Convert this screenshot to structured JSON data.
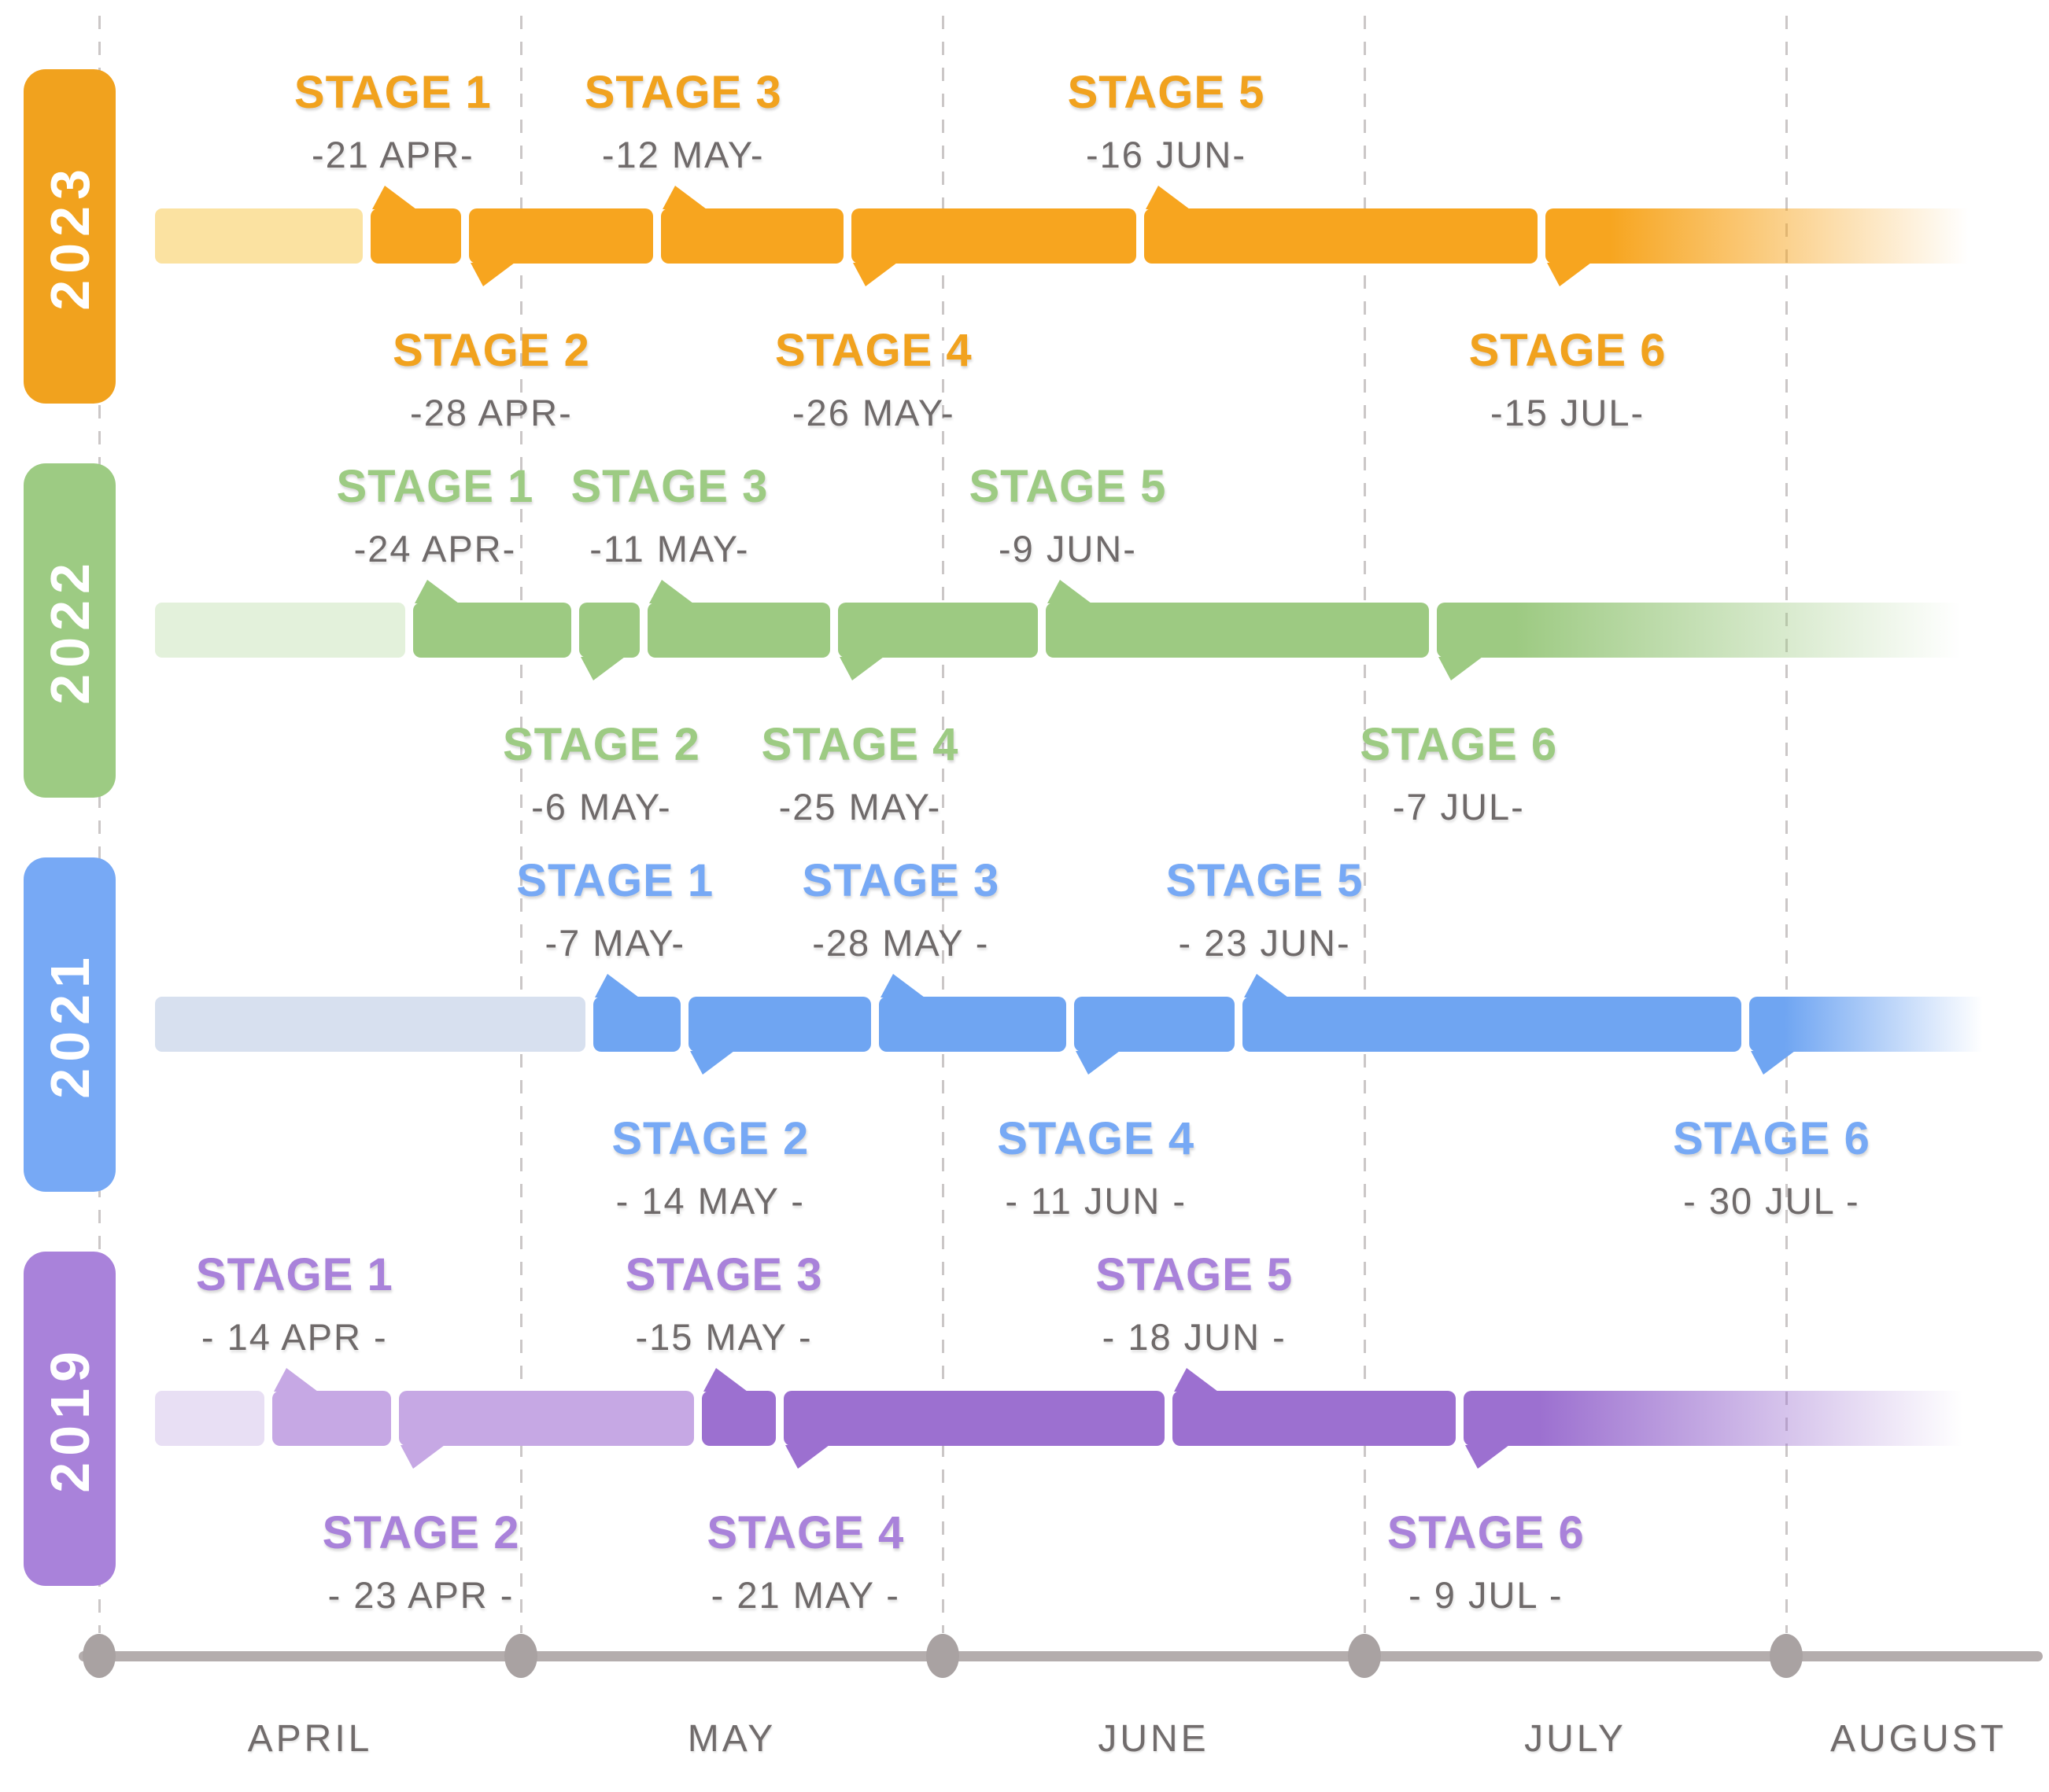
{
  "chart_data": {
    "type": "timeline",
    "title": "",
    "x_axis": {
      "unit": "months",
      "range": [
        "APRIL",
        "AUGUST"
      ],
      "gridlines": "dashed-vertical-at-month-starts"
    },
    "axis": {
      "months": [
        "APRIL",
        "MAY",
        "JUNE",
        "JULY",
        "AUGUST"
      ]
    },
    "palette": {
      "date_text": "#6F6A6A",
      "month_text": "#716C6C",
      "axis_line": "#B4ADAD",
      "axis_dot": "#A9A2A2",
      "gridline": "#CBC7C7",
      "year_text": "#FFFFFF"
    },
    "rows": [
      {
        "year": "2023",
        "colors": {
          "bar": "#F7A51F",
          "light": "#FBE2A1",
          "accent": "#F1A21E"
        },
        "stages": [
          {
            "label": "STAGE 1",
            "date": "-21 APR-",
            "month": 4,
            "day": 21
          },
          {
            "label": "STAGE 2",
            "date": "-28 APR-",
            "month": 4,
            "day": 28
          },
          {
            "label": "STAGE 3",
            "date": "-12 MAY-",
            "month": 5,
            "day": 12
          },
          {
            "label": "STAGE 4",
            "date": "-26 MAY-",
            "month": 5,
            "day": 26
          },
          {
            "label": "STAGE 5",
            "date": "-16 JUN-",
            "month": 6,
            "day": 16
          },
          {
            "label": "STAGE 6",
            "date": "-15 JUL-",
            "month": 7,
            "day": 15
          }
        ]
      },
      {
        "year": "2022",
        "colors": {
          "bar": "#9DCA82",
          "light": "#E3F1DB",
          "accent": "#9DCB83"
        },
        "stages": [
          {
            "label": "STAGE 1",
            "date": "-24 APR-",
            "month": 4,
            "day": 24
          },
          {
            "label": "STAGE 2",
            "date": "-6 MAY-",
            "month": 5,
            "day": 6
          },
          {
            "label": "STAGE 3",
            "date": "-11 MAY-",
            "month": 5,
            "day": 11
          },
          {
            "label": "STAGE 4",
            "date": "-25 MAY-",
            "month": 5,
            "day": 25
          },
          {
            "label": "STAGE 5",
            "date": "-9 JUN-",
            "month": 6,
            "day": 9
          },
          {
            "label": "STAGE 6",
            "date": "-7 JUL-",
            "month": 7,
            "day": 7
          }
        ]
      },
      {
        "year": "2021",
        "colors": {
          "bar": "#6FA5F2",
          "light": "#D7E0EF",
          "accent": "#77A9F5"
        },
        "stages": [
          {
            "label": "STAGE 1",
            "date": "-7 MAY-",
            "month": 5,
            "day": 7
          },
          {
            "label": "STAGE 2",
            "date": "- 14 MAY -",
            "month": 5,
            "day": 14
          },
          {
            "label": "STAGE 3",
            "date": "-28 MAY -",
            "month": 5,
            "day": 28
          },
          {
            "label": "STAGE 4",
            "date": "- 11 JUN -",
            "month": 6,
            "day": 11
          },
          {
            "label": "STAGE 5",
            "date": "- 23 JUN-",
            "month": 6,
            "day": 23
          },
          {
            "label": "STAGE 6",
            "date": "- 30 JUL -",
            "month": 7,
            "day": 30
          }
        ]
      },
      {
        "year": "2019",
        "colors": {
          "bar": "#9C70D0",
          "mid": "#C6A8E4",
          "light": "#E8DFF4",
          "accent": "#A982DA"
        },
        "stages": [
          {
            "label": "STAGE 1",
            "date": "- 14 APR -",
            "month": 4,
            "day": 14,
            "shade": "mid"
          },
          {
            "label": "STAGE 2",
            "date": "- 23 APR -",
            "month": 4,
            "day": 23,
            "shade": "mid"
          },
          {
            "label": "STAGE 3",
            "date": "-15 MAY -",
            "month": 5,
            "day": 15
          },
          {
            "label": "STAGE 4",
            "date": "- 21 MAY -",
            "month": 5,
            "day": 21
          },
          {
            "label": "STAGE 5",
            "date": "- 18 JUN -",
            "month": 6,
            "day": 18
          },
          {
            "label": "STAGE 6",
            "date": "- 9 JUL -",
            "month": 7,
            "day": 9
          }
        ]
      }
    ]
  }
}
